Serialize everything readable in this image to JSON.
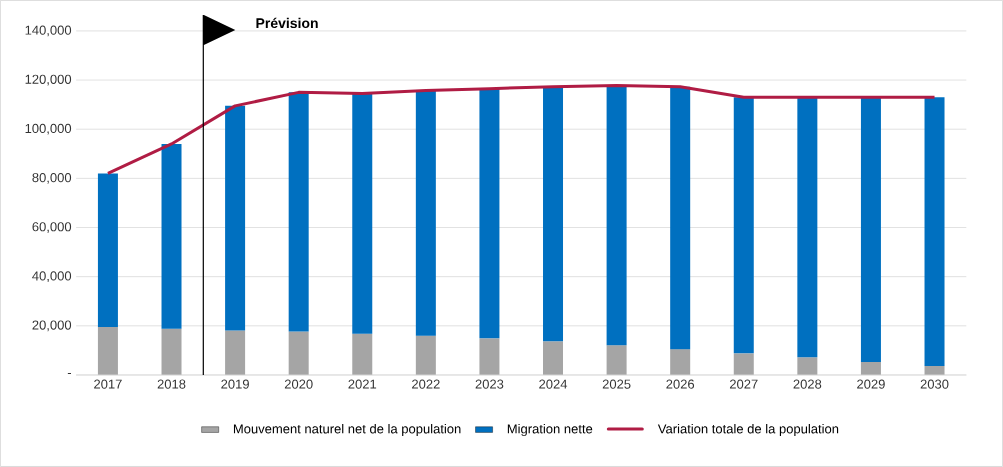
{
  "chart_data": {
    "type": "bar",
    "stacked": true,
    "categories": [
      "2017",
      "2018",
      "2019",
      "2020",
      "2021",
      "2022",
      "2023",
      "2024",
      "2025",
      "2026",
      "2027",
      "2028",
      "2029",
      "2030"
    ],
    "series": [
      {
        "name": "Mouvement naturel net de la population",
        "color": "#a5a5a5",
        "values": [
          19500,
          18800,
          18100,
          17700,
          16800,
          16000,
          14900,
          13700,
          12100,
          10500,
          8800,
          7200,
          5300,
          3700
        ]
      },
      {
        "name": "Migration nette",
        "color": "#0070c0",
        "values": [
          62500,
          75200,
          91400,
          97300,
          97700,
          99800,
          101600,
          103600,
          105700,
          106800,
          104200,
          105800,
          107700,
          109300
        ]
      },
      {
        "name": "Variation totale de la population",
        "type": "line",
        "color": "#b01c44",
        "values": [
          82000,
          94000,
          109500,
          115000,
          114500,
          115800,
          116500,
          117300,
          117800,
          117300,
          113000,
          113000,
          113000,
          113000
        ]
      }
    ],
    "ylim": [
      0,
      140000
    ],
    "yticks": [
      {
        "value": 0,
        "label": "-"
      },
      {
        "value": 20000,
        "label": "20,000"
      },
      {
        "value": 40000,
        "label": "40,000"
      },
      {
        "value": 60000,
        "label": "60,000"
      },
      {
        "value": 80000,
        "label": "80,000"
      },
      {
        "value": 100000,
        "label": "100,000"
      },
      {
        "value": 120000,
        "label": "120,000"
      },
      {
        "value": 140000,
        "label": "140,000"
      }
    ],
    "annotations": [
      "Prévision"
    ],
    "grid": "y",
    "legend": "bottom"
  }
}
